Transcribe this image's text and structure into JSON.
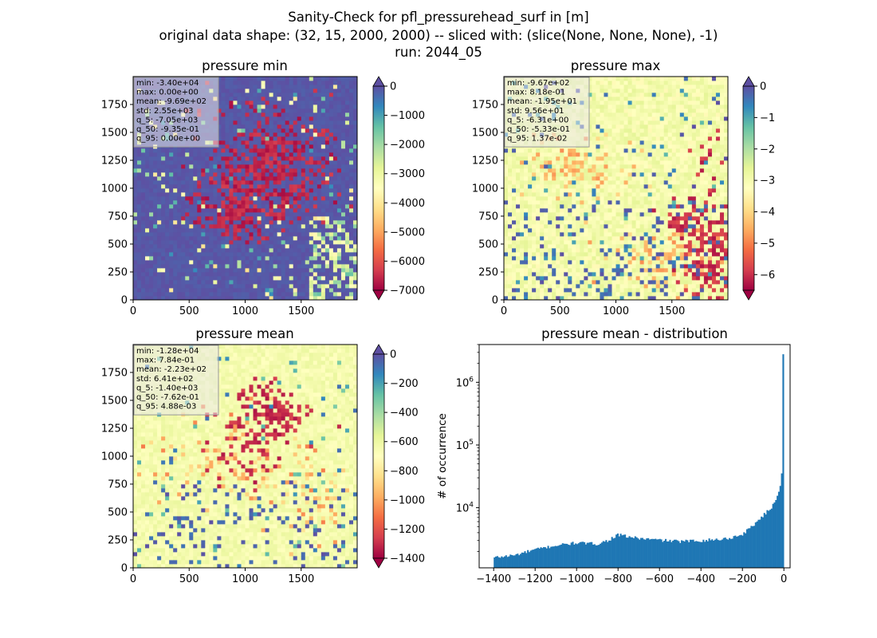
{
  "suptitle": {
    "line1": "Sanity-Check for pfl_pressurehead_surf in [m]",
    "line2": "original data shape: (32, 15, 2000, 2000) -- sliced with: (slice(None, None, None), -1)",
    "line3": "run: 2044_05"
  },
  "colors": {
    "spectral": [
      "#9e0142",
      "#d53e4f",
      "#f46d43",
      "#fdae61",
      "#fee08b",
      "#ffffbf",
      "#e6f598",
      "#abdda4",
      "#66c2a5",
      "#3288bd",
      "#5e4fa2"
    ],
    "histogram_bar": "#1f77b4",
    "stats_box_bg": "#e8e8e8"
  },
  "chart_data": [
    {
      "type": "heatmap",
      "title": "pressure min",
      "xlim": [
        0,
        2000
      ],
      "ylim": [
        0,
        2000
      ],
      "x_ticks": [
        "0",
        "500",
        "1000",
        "1500"
      ],
      "y_ticks": [
        "0",
        "250",
        "500",
        "750",
        "1000",
        "1250",
        "1500",
        "1750"
      ],
      "colorbar": {
        "min": -7000,
        "max": 0,
        "ticks": [
          "0",
          "−1000",
          "−2000",
          "−3000",
          "−4000",
          "−5000",
          "−6000",
          "−7000"
        ],
        "extend": "both"
      },
      "stats": [
        "min: -3.40e+04",
        "max: 0.00e+00",
        "mean: -9.69e+02",
        "std: 2.55e+03",
        "q_5: -7.05e+03",
        "q_50: -9.35e-01",
        "q_95: 0.00e+00"
      ]
    },
    {
      "type": "heatmap",
      "title": "pressure max",
      "xlim": [
        0,
        2000
      ],
      "ylim": [
        0,
        2000
      ],
      "x_ticks": [
        "0",
        "500",
        "1000",
        "1500"
      ],
      "y_ticks": [
        "0",
        "250",
        "500",
        "750",
        "1000",
        "1250",
        "1500",
        "1750"
      ],
      "colorbar": {
        "min": -6.5,
        "max": 0,
        "ticks": [
          "0",
          "−1",
          "−2",
          "−3",
          "−4",
          "−5",
          "−6"
        ],
        "extend": "both"
      },
      "stats": [
        "min: -9.67e+02",
        "max: 8.18e-01",
        "mean: -1.95e+01",
        "std: 9.56e+01",
        "q_5: -6.31e+00",
        "q_50: -5.33e-01",
        "q_95: 1.37e-02"
      ]
    },
    {
      "type": "heatmap",
      "title": "pressure mean",
      "xlim": [
        0,
        2000
      ],
      "ylim": [
        0,
        2000
      ],
      "x_ticks": [
        "0",
        "500",
        "1000",
        "1500"
      ],
      "y_ticks": [
        "0",
        "250",
        "500",
        "750",
        "1000",
        "1250",
        "1500",
        "1750"
      ],
      "colorbar": {
        "min": -1400,
        "max": 0,
        "ticks": [
          "0",
          "−200",
          "−400",
          "−600",
          "−800",
          "−1000",
          "−1200",
          "−1400"
        ],
        "extend": "both"
      },
      "stats": [
        "min: -1.28e+04",
        "max: 7.84e-01",
        "mean: -2.23e+02",
        "std: 6.41e+02",
        "q_5: -1.40e+03",
        "q_50: -7.62e-01",
        "q_95: 4.88e-03"
      ]
    },
    {
      "type": "bar",
      "title": "pressure mean - distribution",
      "ylabel": "# of occurrence",
      "xlim": [
        -1470,
        30
      ],
      "ylim": [
        1100,
        4000000
      ],
      "yscale": "log",
      "x_ticks": [
        "−1400",
        "−1200",
        "−1000",
        "−800",
        "−600",
        "−400",
        "−200",
        "0"
      ],
      "y_ticks": [
        "10^4",
        "10^5",
        "10^6"
      ],
      "bins": {
        "start": -1400,
        "end": 0,
        "centers": [
          -1400,
          -1300,
          -1200,
          -1100,
          -1000,
          -900,
          -850,
          -800,
          -750,
          -700,
          -600,
          -500,
          -400,
          -300,
          -250,
          -200,
          -150,
          -100,
          -60,
          -40,
          -20,
          -10,
          -5,
          -1
        ],
        "counts": [
          1600,
          1750,
          2150,
          2500,
          2750,
          2650,
          3000,
          3700,
          3450,
          3250,
          3050,
          2900,
          3000,
          3150,
          3350,
          3750,
          5200,
          7500,
          10000,
          13500,
          20000,
          36000,
          30000,
          2800000
        ]
      }
    }
  ]
}
